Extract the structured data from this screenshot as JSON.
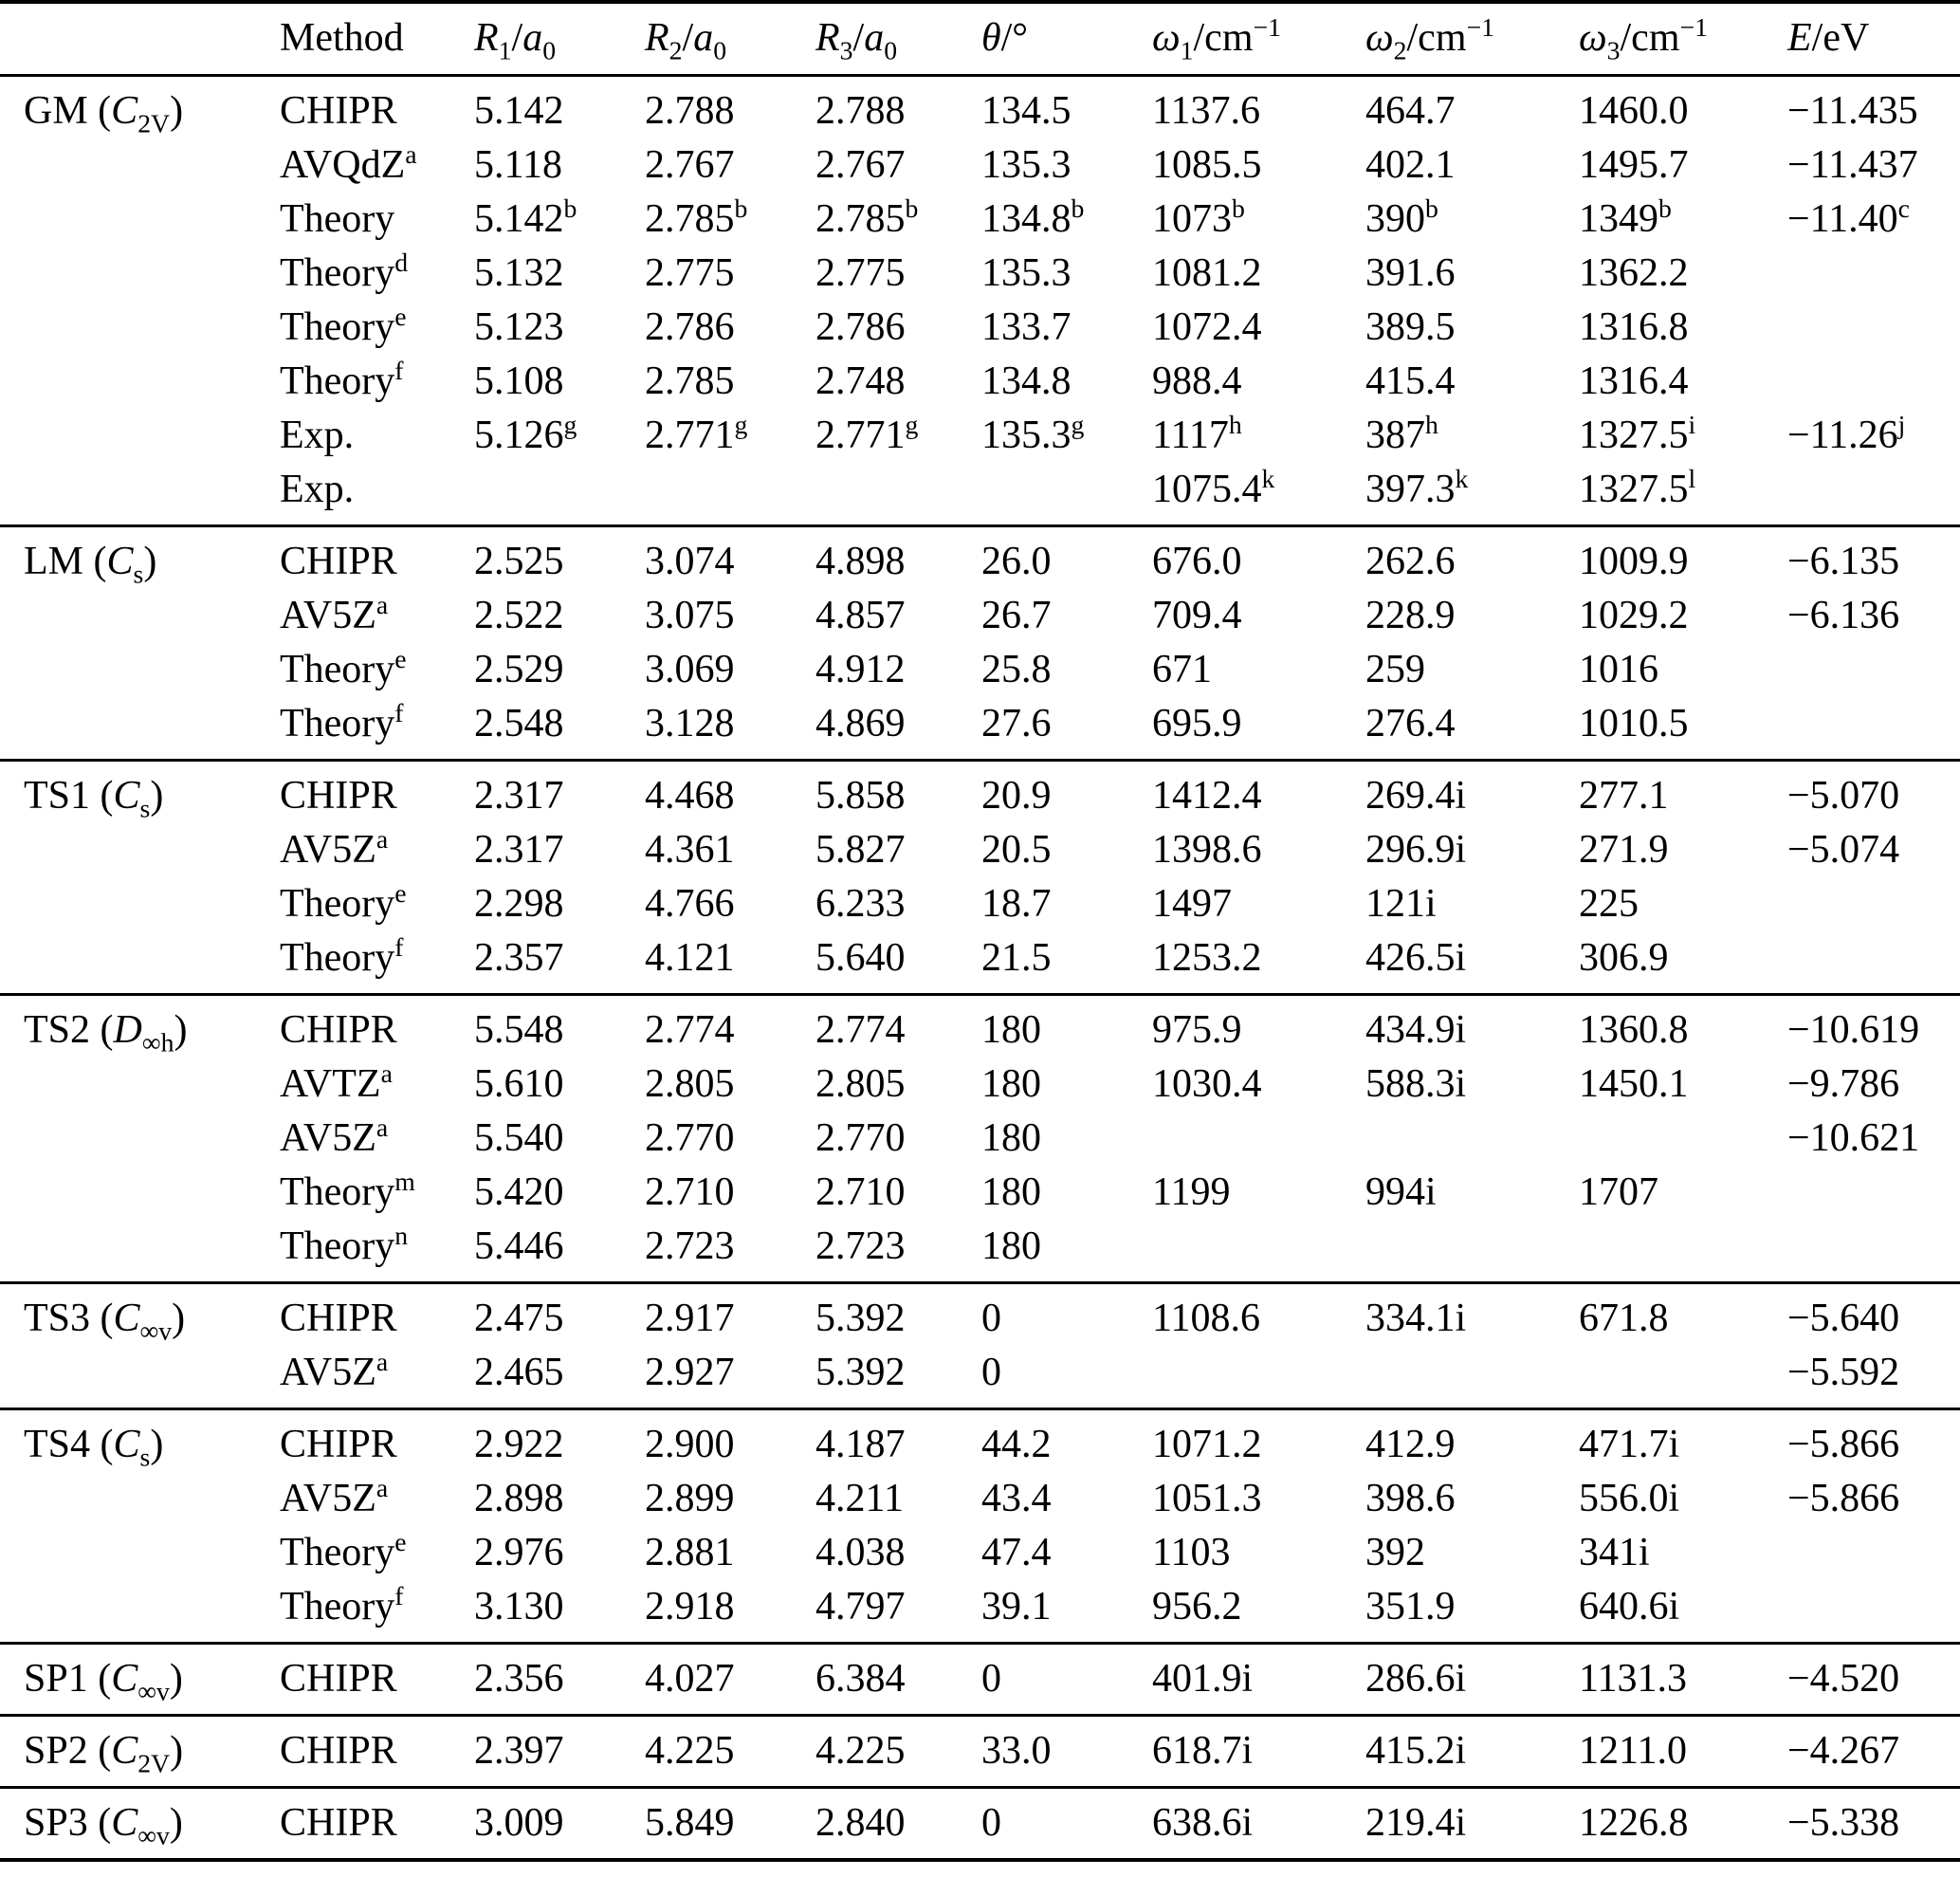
{
  "table": {
    "columns": [
      "",
      "Method",
      "*R*_{1}/*a*_{0}",
      "*R*_{2}/*a*_{0}",
      "*R*_{3}/*a*_{0}",
      "*θ*/°",
      "*ω*_{1}/cm^{−1}",
      "*ω*_{2}/cm^{−1}",
      "*ω*_{3}/cm^{−1}",
      "*E*/eV"
    ],
    "sections": [
      {
        "label": "GM (*C*_{2V})",
        "rows": [
          {
            "method": "CHIPR",
            "values": [
              "5.142",
              "2.788",
              "2.788",
              "134.5",
              "1137.6",
              "464.7",
              "1460.0",
              "−11.435"
            ]
          },
          {
            "method": "AVQdZ^{a}",
            "values": [
              "5.118",
              "2.767",
              "2.767",
              "135.3",
              "1085.5",
              "402.1",
              "1495.7",
              "−11.437"
            ]
          },
          {
            "method": "Theory",
            "values": [
              "5.142^{b}",
              "2.785^{b}",
              "2.785^{b}",
              "134.8^{b}",
              "1073^{b}",
              "390^{b}",
              "1349^{b}",
              "−11.40^{c}"
            ]
          },
          {
            "method": "Theory^{d}",
            "values": [
              "5.132",
              "2.775",
              "2.775",
              "135.3",
              "1081.2",
              "391.6",
              "1362.2",
              ""
            ]
          },
          {
            "method": "Theory^{e}",
            "values": [
              "5.123",
              "2.786",
              "2.786",
              "133.7",
              "1072.4",
              "389.5",
              "1316.8",
              ""
            ]
          },
          {
            "method": "Theory^{f}",
            "values": [
              "5.108",
              "2.785",
              "2.748",
              "134.8",
              "988.4",
              "415.4",
              "1316.4",
              ""
            ]
          },
          {
            "method": "Exp.",
            "values": [
              "5.126^{g}",
              "2.771^{g}",
              "2.771^{g}",
              "135.3^{g}",
              "1117^{h}",
              "387^{h}",
              "1327.5^{i}",
              "−11.26^{j}"
            ]
          },
          {
            "method": "Exp.",
            "values": [
              "",
              "",
              "",
              "",
              "1075.4^{k}",
              "397.3^{k}",
              "1327.5^{l}",
              ""
            ]
          }
        ]
      },
      {
        "label": "LM (*C*_{s})",
        "rows": [
          {
            "method": "CHIPR",
            "values": [
              "2.525",
              "3.074",
              "4.898",
              "26.0",
              "676.0",
              "262.6",
              "1009.9",
              "−6.135"
            ]
          },
          {
            "method": "AV5Z^{a}",
            "values": [
              "2.522",
              "3.075",
              "4.857",
              "26.7",
              "709.4",
              "228.9",
              "1029.2",
              "−6.136"
            ]
          },
          {
            "method": "Theory^{e}",
            "values": [
              "2.529",
              "3.069",
              "4.912",
              "25.8",
              "671",
              "259",
              "1016",
              ""
            ]
          },
          {
            "method": "Theory^{f}",
            "values": [
              "2.548",
              "3.128",
              "4.869",
              "27.6",
              "695.9",
              "276.4",
              "1010.5",
              ""
            ]
          }
        ]
      },
      {
        "label": "TS1 (*C*_{s})",
        "rows": [
          {
            "method": "CHIPR",
            "values": [
              "2.317",
              "4.468",
              "5.858",
              "20.9",
              "1412.4",
              "269.4i",
              "277.1",
              "−5.070"
            ]
          },
          {
            "method": "AV5Z^{a}",
            "values": [
              "2.317",
              "4.361",
              "5.827",
              "20.5",
              "1398.6",
              "296.9i",
              "271.9",
              "−5.074"
            ]
          },
          {
            "method": "Theory^{e}",
            "values": [
              "2.298",
              "4.766",
              "6.233",
              "18.7",
              "1497",
              "121i",
              "225",
              ""
            ]
          },
          {
            "method": "Theory^{f}",
            "values": [
              "2.357",
              "4.121",
              "5.640",
              "21.5",
              "1253.2",
              "426.5i",
              "306.9",
              ""
            ]
          }
        ]
      },
      {
        "label": "TS2 (*D*_{∞h})",
        "rows": [
          {
            "method": "CHIPR",
            "values": [
              "5.548",
              "2.774",
              "2.774",
              "180",
              "975.9",
              "434.9i",
              "1360.8",
              "−10.619"
            ]
          },
          {
            "method": "AVTZ^{a}",
            "values": [
              "5.610",
              "2.805",
              "2.805",
              "180",
              "1030.4",
              "588.3i",
              "1450.1",
              "−9.786"
            ]
          },
          {
            "method": "AV5Z^{a}",
            "values": [
              "5.540",
              "2.770",
              "2.770",
              "180",
              "",
              "",
              "",
              "−10.621"
            ]
          },
          {
            "method": "Theory^{m}",
            "values": [
              "5.420",
              "2.710",
              "2.710",
              "180",
              "1199",
              "994i",
              "1707",
              ""
            ]
          },
          {
            "method": "Theory^{n}",
            "values": [
              "5.446",
              "2.723",
              "2.723",
              "180",
              "",
              "",
              "",
              ""
            ]
          }
        ]
      },
      {
        "label": "TS3 (*C*_{∞v})",
        "rows": [
          {
            "method": "CHIPR",
            "values": [
              "2.475",
              "2.917",
              "5.392",
              "0",
              "1108.6",
              "334.1i",
              "671.8",
              "−5.640"
            ]
          },
          {
            "method": "AV5Z^{a}",
            "values": [
              "2.465",
              "2.927",
              "5.392",
              "0",
              "",
              "",
              "",
              "−5.592"
            ]
          }
        ]
      },
      {
        "label": "TS4 (*C*_{s})",
        "rows": [
          {
            "method": "CHIPR",
            "values": [
              "2.922",
              "2.900",
              "4.187",
              "44.2",
              "1071.2",
              "412.9",
              "471.7i",
              "−5.866"
            ]
          },
          {
            "method": "AV5Z^{a}",
            "values": [
              "2.898",
              "2.899",
              "4.211",
              "43.4",
              "1051.3",
              "398.6",
              "556.0i",
              "−5.866"
            ]
          },
          {
            "method": "Theory^{e}",
            "values": [
              "2.976",
              "2.881",
              "4.038",
              "47.4",
              "1103",
              "392",
              "341i",
              ""
            ]
          },
          {
            "method": "Theory^{f}",
            "values": [
              "3.130",
              "2.918",
              "4.797",
              "39.1",
              "956.2",
              "351.9",
              "640.6i",
              ""
            ]
          }
        ]
      },
      {
        "label": "SP1 (*C*_{∞v})",
        "rows": [
          {
            "method": "CHIPR",
            "values": [
              "2.356",
              "4.027",
              "6.384",
              "0",
              "401.9i",
              "286.6i",
              "1131.3",
              "−4.520"
            ]
          }
        ]
      },
      {
        "label": "SP2 (*C*_{2V})",
        "rows": [
          {
            "method": "CHIPR",
            "values": [
              "2.397",
              "4.225",
              "4.225",
              "33.0",
              "618.7i",
              "415.2i",
              "1211.0",
              "−4.267"
            ]
          }
        ]
      },
      {
        "label": "SP3 (*C*_{∞v})",
        "rows": [
          {
            "method": "CHIPR",
            "values": [
              "3.009",
              "5.849",
              "2.840",
              "0",
              "638.6i",
              "219.4i",
              "1226.8",
              "−5.338"
            ]
          }
        ]
      }
    ]
  }
}
